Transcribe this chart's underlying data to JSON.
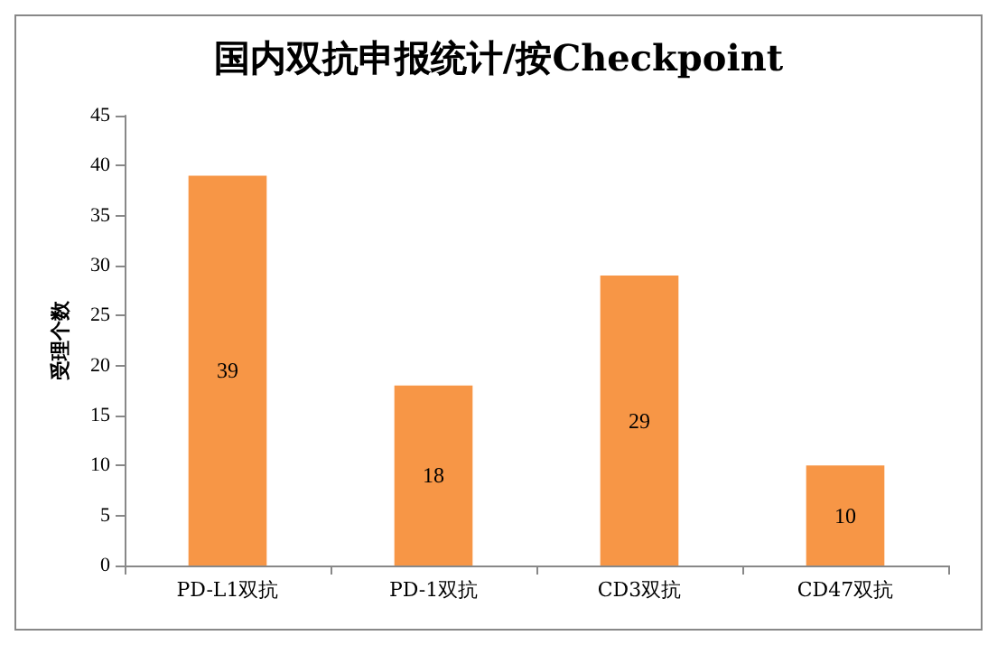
{
  "chart_data": {
    "type": "bar",
    "title": "国内双抗申报统计/按Checkpoint",
    "ylabel": "受理个数",
    "categories": [
      "PD-L1双抗",
      "PD-1双抗",
      "CD3双抗",
      "CD47双抗"
    ],
    "values": [
      39,
      18,
      29,
      10
    ],
    "color": "#f79646",
    "ylim": [
      0,
      45
    ],
    "yticks": [
      0,
      5,
      10,
      15,
      20,
      25,
      30,
      35,
      40,
      45
    ],
    "grid": false,
    "data_labels": true
  }
}
